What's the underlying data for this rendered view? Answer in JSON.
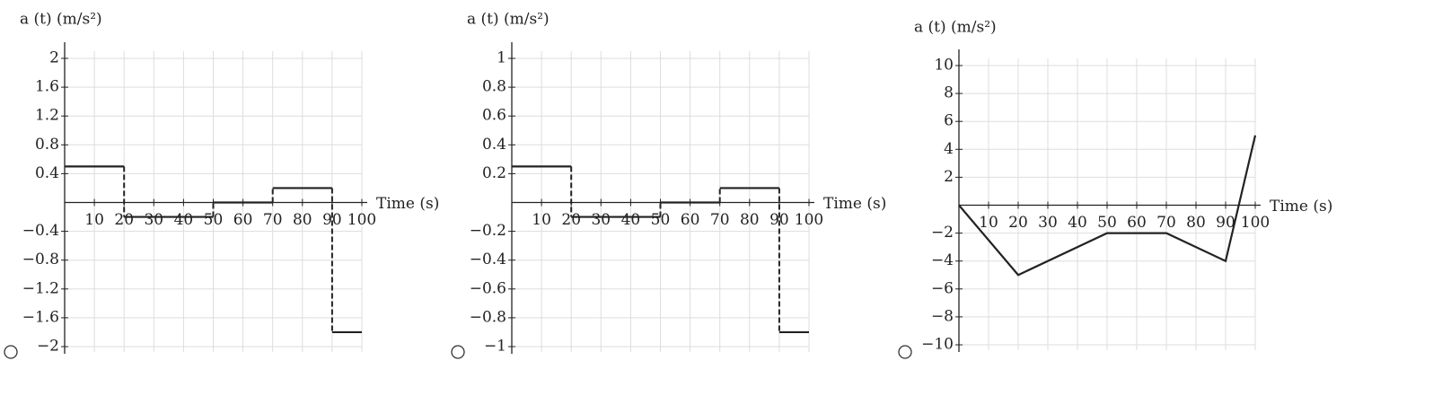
{
  "chart_data": [
    {
      "type": "step",
      "y_label": "a (t) (m/s²)",
      "x_label": "Time (s)",
      "x": [
        0,
        20,
        50,
        70,
        90
      ],
      "values": [
        0.5,
        -0.2,
        0,
        0.2,
        -1.8
      ],
      "color": "#222222",
      "xlim": [
        0,
        100
      ],
      "xticks": [
        10,
        20,
        30,
        40,
        50,
        60,
        70,
        80,
        90,
        100
      ],
      "ylim": [
        -2,
        2
      ],
      "yticks": [
        2,
        1.6,
        1.2,
        0.8,
        0.4,
        {
          "value": -0.4,
          "label": "−0.4"
        },
        {
          "value": -0.8,
          "label": "−0.8"
        },
        {
          "value": -1.2,
          "label": "−1.2"
        },
        {
          "value": -1.6,
          "label": "−1.6"
        },
        {
          "value": -2,
          "label": "−2"
        }
      ],
      "grid": true
    },
    {
      "type": "step",
      "y_label": "a (t) (m/s²)",
      "x_label": "Time (s)",
      "x": [
        0,
        20,
        50,
        70,
        90
      ],
      "values": [
        0.25,
        -0.1,
        0,
        0.1,
        -0.9
      ],
      "color": "#222222",
      "xlim": [
        0,
        100
      ],
      "xticks": [
        10,
        20,
        30,
        40,
        50,
        60,
        70,
        80,
        90,
        100
      ],
      "ylim": [
        -1,
        1
      ],
      "yticks": [
        1,
        0.8,
        0.6,
        0.4,
        0.2,
        {
          "value": -0.2,
          "label": "−0.2"
        },
        {
          "value": -0.4,
          "label": "−0.4"
        },
        {
          "value": -0.6,
          "label": "−0.6"
        },
        {
          "value": -0.8,
          "label": "−0.8"
        },
        {
          "value": -1,
          "label": "−1"
        }
      ],
      "grid": true
    },
    {
      "type": "line",
      "y_label": "a (t) (m/s²)",
      "x_label": "Time (s)",
      "x": [
        0,
        20,
        50,
        70,
        90,
        100
      ],
      "values": [
        0,
        -5,
        -2,
        -2,
        -4,
        5
      ],
      "color": "#222222",
      "xlim": [
        0,
        100
      ],
      "xticks": [
        10,
        20,
        30,
        40,
        50,
        60,
        70,
        80,
        90,
        100
      ],
      "ylim": [
        -10,
        10
      ],
      "yticks": [
        10,
        8,
        6,
        4,
        2,
        {
          "value": -2,
          "label": "−2"
        },
        {
          "value": -4,
          "label": "−4"
        },
        {
          "value": -6,
          "label": "−6"
        },
        {
          "value": -8,
          "label": "−8"
        },
        {
          "value": -10,
          "label": "−10"
        }
      ],
      "grid": true
    }
  ]
}
